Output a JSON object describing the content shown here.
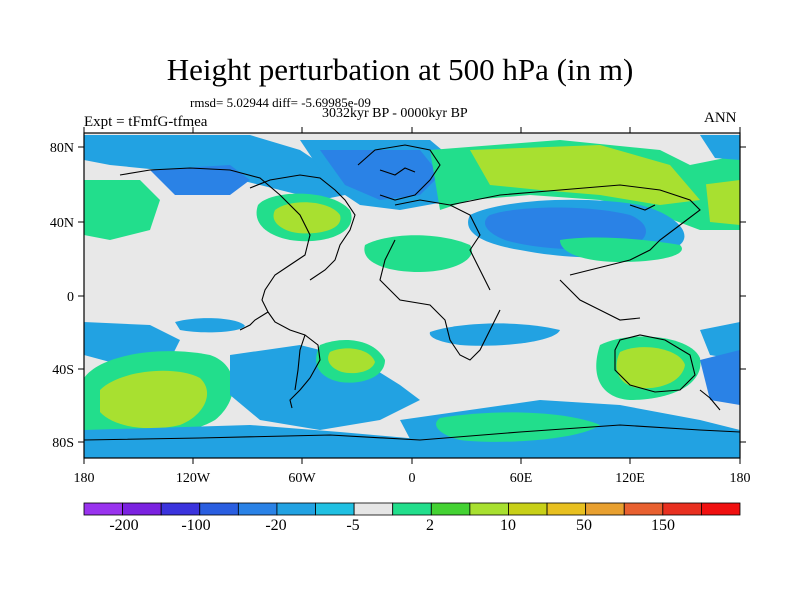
{
  "title": "Height perturbation at 500 hPa (in m)",
  "stats": "rmsd= 5.02944 diff= -5.69985e-09",
  "period": "3032kyr BP - 0000kyr BP",
  "experiment": "Expt = tFmfG-tfmea",
  "season": "ANN",
  "axes": {
    "lat_labels": [
      "80N",
      "40N",
      "0",
      "40S",
      "80S"
    ],
    "lon_labels": [
      "180",
      "120W",
      "60W",
      "0",
      "60E",
      "120E",
      "180"
    ]
  },
  "colorbar": {
    "colors": [
      "#9933ee",
      "#7b22e0",
      "#3b33dd",
      "#2a5ee0",
      "#2a82e6",
      "#22a2e2",
      "#20c0e2",
      "#e6e6e6",
      "#22de8c",
      "#44d233",
      "#a8e030",
      "#c8d018",
      "#e8c020",
      "#e8a030",
      "#e86030",
      "#e83020",
      "#f01010"
    ],
    "labels": [
      "-200",
      "-100",
      "-20",
      "-5",
      "2",
      "10",
      "50",
      "150"
    ]
  }
}
